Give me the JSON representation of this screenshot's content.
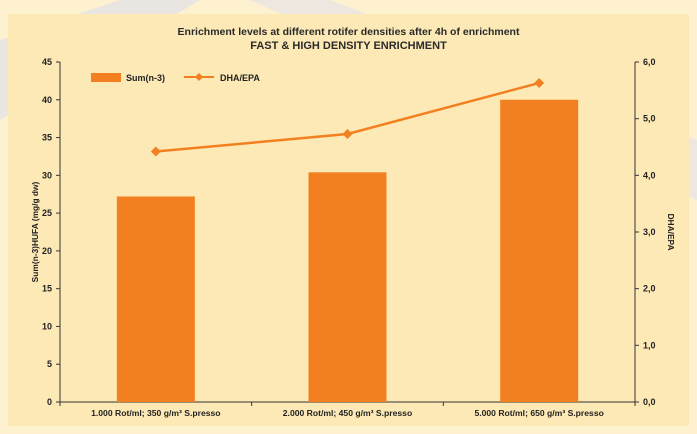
{
  "chart_data": {
    "type": "bar",
    "title": "Enrichment levels at different rotifer densities after 4h of enrichment",
    "subtitle": "FAST & HIGH DENSITY ENRICHMENT",
    "categories": [
      "1.000 Rot/ml; 350 g/m³ S.presso",
      "2.000 Rot/ml; 450 g/m³ S.presso",
      "5.000 Rot/ml; 650 g/m³ S.presso"
    ],
    "series": [
      {
        "name": "Sum(n-3)",
        "kind": "bar",
        "axis": "left",
        "values": [
          27.2,
          30.4,
          40.0
        ],
        "color": "#f28020"
      },
      {
        "name": "DHA/EPA",
        "kind": "line",
        "axis": "right",
        "values": [
          4.42,
          4.73,
          5.63
        ],
        "color": "#f28020"
      }
    ],
    "ylabel": "Sum(n-3)HUFA (mg/g dw)",
    "ylabel_right": "DHA/EPA",
    "ylim": [
      0,
      45
    ],
    "ylim_right": [
      0,
      6
    ],
    "yticks": [
      "0",
      "5",
      "10",
      "15",
      "20",
      "25",
      "30",
      "35",
      "40",
      "45"
    ],
    "yticks_right": [
      "0,0",
      "1,0",
      "2,0",
      "3,0",
      "4,0",
      "5,0",
      "6,0"
    ],
    "legend_position": "top-left",
    "grid": false
  }
}
